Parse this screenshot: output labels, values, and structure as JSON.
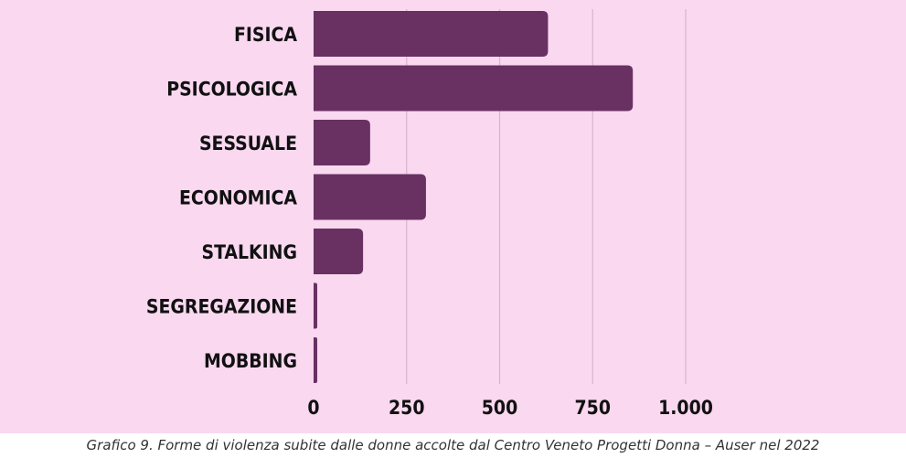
{
  "chart_data": {
    "type": "bar",
    "orientation": "horizontal",
    "categories": [
      "FISICA",
      "PSICOLOGICA",
      "SESSUALE",
      "ECONOMICA",
      "STALKING",
      "SEGREGAZIONE",
      "MOBBING"
    ],
    "values": [
      630,
      858,
      152,
      302,
      133,
      8,
      8
    ],
    "xlim": [
      0,
      1000
    ],
    "xticks": [
      0,
      250,
      500,
      750,
      1000
    ],
    "xtick_labels": [
      "0",
      "250",
      "500",
      "750",
      "1.000"
    ],
    "grid": "vertical",
    "legend": "none",
    "title": "",
    "xlabel": "",
    "ylabel": ""
  },
  "caption": "Grafico 9. Forme di violenza subite dalle donne accolte dal Centro Veneto Progetti Donna – Auser nel 2022",
  "colors": {
    "background": "#f9d8f0",
    "bar": "#683162",
    "grid": "#dab4cf",
    "text": "#111111"
  }
}
